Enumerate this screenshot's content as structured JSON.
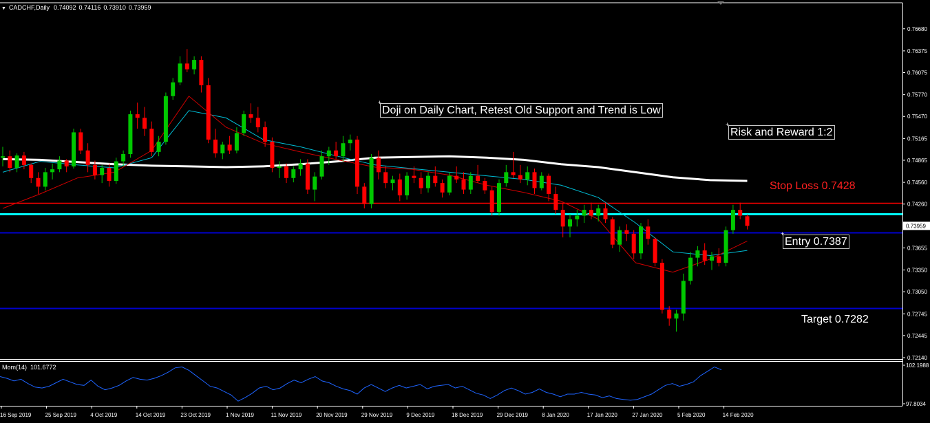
{
  "symbol": {
    "name": "CADCHF,Daily",
    "ohlc": [
      "0.74092",
      "0.74116",
      "0.73910",
      "0.73959"
    ],
    "menu_icon": "triangle-down-icon"
  },
  "indicator": {
    "name": "Mom(14)",
    "value": "101.6772"
  },
  "annotations": {
    "doji": "Doji on Daily Chart, Retest Old Support and Trend is Low",
    "risk": "Risk and Reward 1:2",
    "stop": "Stop Loss 0.7428",
    "entry": "Entry 0.7387",
    "target": "Target 0.7282"
  },
  "price_axis": {
    "labels": [
      "0.76680",
      "0.76375",
      "0.76075",
      "0.75770",
      "0.75470",
      "0.75165",
      "0.74865",
      "0.74560",
      "0.74260",
      "0.73955",
      "0.73655",
      "0.73350",
      "0.73050",
      "0.72745",
      "0.72445",
      "0.72140"
    ],
    "current": "0.73959"
  },
  "mom_axis": {
    "labels": [
      "102.1988",
      "97.8034"
    ]
  },
  "time_axis": {
    "labels": [
      "16 Sep 2019",
      "25 Sep 2019",
      "4 Oct 2019",
      "14 Oct 2019",
      "23 Oct 2019",
      "1 Nov 2019",
      "11 Nov 2019",
      "20 Nov 2019",
      "29 Nov 2019",
      "9 Dec 2019",
      "18 Dec 2019",
      "29 Dec 2019",
      "8 Jan 2020",
      "17 Jan 2020",
      "27 Jan 2020",
      "5 Feb 2020",
      "14 Feb 2020"
    ]
  },
  "colors": {
    "background": "#000000",
    "bull": "#00c800",
    "bear": "#ff0000",
    "stop_line": "#ff0000",
    "support_line": "#00ffff",
    "level_line": "#0000cc",
    "ma_fast": "#00bcd4",
    "ma_slow": "#d00000",
    "ma_long": "#ffffff",
    "momentum": "#1e64ff",
    "grid_axis": "#ffffff",
    "stop_text": "#ff2020"
  },
  "chart_data": [
    {
      "type": "candlestick",
      "title": "CADCHF,Daily",
      "ylim": [
        0.7214,
        0.7683
      ],
      "levels": [
        {
          "name": "Stop Loss",
          "value": 0.7428,
          "color": "#ff0000"
        },
        {
          "name": "Support",
          "value": 0.7412,
          "color": "#00ffff"
        },
        {
          "name": "Entry",
          "value": 0.7387,
          "color": "#0000cc"
        },
        {
          "name": "Target",
          "value": 0.7282,
          "color": "#0000cc"
        }
      ],
      "candles": [
        [
          0.749,
          0.7505,
          0.7478,
          0.7492
        ],
        [
          0.7492,
          0.75,
          0.747,
          0.7476
        ],
        [
          0.7476,
          0.7496,
          0.747,
          0.7493
        ],
        [
          0.7493,
          0.7498,
          0.7474,
          0.748
        ],
        [
          0.748,
          0.7482,
          0.7455,
          0.7462
        ],
        [
          0.7462,
          0.747,
          0.744,
          0.745
        ],
        [
          0.745,
          0.7476,
          0.7445,
          0.747
        ],
        [
          0.747,
          0.7482,
          0.746,
          0.7474
        ],
        [
          0.7474,
          0.7492,
          0.747,
          0.7486
        ],
        [
          0.7486,
          0.7488,
          0.747,
          0.7478
        ],
        [
          0.7478,
          0.753,
          0.7475,
          0.7525
        ],
        [
          0.7525,
          0.753,
          0.7495,
          0.75
        ],
        [
          0.75,
          0.751,
          0.747,
          0.748
        ],
        [
          0.748,
          0.7486,
          0.746,
          0.7466
        ],
        [
          0.7466,
          0.748,
          0.7455,
          0.7476
        ],
        [
          0.7476,
          0.7482,
          0.745,
          0.7458
        ],
        [
          0.7458,
          0.749,
          0.7454,
          0.7485
        ],
        [
          0.7485,
          0.75,
          0.7478,
          0.7495
        ],
        [
          0.7495,
          0.7555,
          0.749,
          0.755
        ],
        [
          0.755,
          0.7566,
          0.753,
          0.7545
        ],
        [
          0.7545,
          0.756,
          0.752,
          0.753
        ],
        [
          0.753,
          0.754,
          0.7492,
          0.7498
        ],
        [
          0.7498,
          0.752,
          0.7492,
          0.7512
        ],
        [
          0.7512,
          0.758,
          0.7508,
          0.7575
        ],
        [
          0.7575,
          0.76,
          0.757,
          0.7594
        ],
        [
          0.7594,
          0.763,
          0.759,
          0.762
        ],
        [
          0.762,
          0.764,
          0.7608,
          0.7612
        ],
        [
          0.7612,
          0.763,
          0.7605,
          0.7625
        ],
        [
          0.7625,
          0.763,
          0.758,
          0.759
        ],
        [
          0.759,
          0.76,
          0.751,
          0.7515
        ],
        [
          0.7515,
          0.753,
          0.749,
          0.7496
        ],
        [
          0.7496,
          0.7512,
          0.7488,
          0.7508
        ],
        [
          0.7508,
          0.752,
          0.7495,
          0.75
        ],
        [
          0.75,
          0.7532,
          0.7496,
          0.7524
        ],
        [
          0.7524,
          0.7555,
          0.752,
          0.755
        ],
        [
          0.755,
          0.7565,
          0.7538,
          0.7545
        ],
        [
          0.7545,
          0.756,
          0.7525,
          0.7532
        ],
        [
          0.7532,
          0.754,
          0.7505,
          0.7512
        ],
        [
          0.7512,
          0.7518,
          0.747,
          0.7476
        ],
        [
          0.7476,
          0.7485,
          0.7462,
          0.7478
        ],
        [
          0.7478,
          0.7482,
          0.7455,
          0.7462
        ],
        [
          0.7462,
          0.7478,
          0.7456,
          0.7474
        ],
        [
          0.7474,
          0.7488,
          0.7465,
          0.7482
        ],
        [
          0.7482,
          0.7488,
          0.744,
          0.7446
        ],
        [
          0.7446,
          0.747,
          0.743,
          0.7464
        ],
        [
          0.7464,
          0.75,
          0.746,
          0.7492
        ],
        [
          0.7492,
          0.7505,
          0.748,
          0.75
        ],
        [
          0.75,
          0.7512,
          0.7488,
          0.7492
        ],
        [
          0.7492,
          0.752,
          0.7485,
          0.751
        ],
        [
          0.751,
          0.7522,
          0.75,
          0.7515
        ],
        [
          0.7515,
          0.752,
          0.744,
          0.745
        ],
        [
          0.745,
          0.7455,
          0.742,
          0.7426
        ],
        [
          0.7426,
          0.7495,
          0.742,
          0.749
        ],
        [
          0.749,
          0.75,
          0.746,
          0.747
        ],
        [
          0.747,
          0.7478,
          0.7448,
          0.7455
        ],
        [
          0.7455,
          0.7465,
          0.7445,
          0.746
        ],
        [
          0.746,
          0.7468,
          0.743,
          0.7438
        ],
        [
          0.7438,
          0.747,
          0.7432,
          0.7465
        ],
        [
          0.7465,
          0.7478,
          0.7455,
          0.7462
        ],
        [
          0.7462,
          0.747,
          0.744,
          0.7448
        ],
        [
          0.7448,
          0.747,
          0.7442,
          0.7465
        ],
        [
          0.7465,
          0.7478,
          0.745,
          0.7455
        ],
        [
          0.7455,
          0.746,
          0.7435,
          0.7442
        ],
        [
          0.7442,
          0.747,
          0.7438,
          0.7465
        ],
        [
          0.7465,
          0.7478,
          0.7455,
          0.746
        ],
        [
          0.746,
          0.747,
          0.744,
          0.7446
        ],
        [
          0.7446,
          0.747,
          0.744,
          0.7465
        ],
        [
          0.7465,
          0.748,
          0.7455,
          0.7458
        ],
        [
          0.7458,
          0.7462,
          0.744,
          0.7445
        ],
        [
          0.7445,
          0.745,
          0.741,
          0.7415
        ],
        [
          0.7415,
          0.746,
          0.741,
          0.7455
        ],
        [
          0.7455,
          0.748,
          0.745,
          0.747
        ],
        [
          0.747,
          0.7498,
          0.7462,
          0.7466
        ],
        [
          0.7466,
          0.748,
          0.7455,
          0.746
        ],
        [
          0.746,
          0.7478,
          0.7452,
          0.747
        ],
        [
          0.747,
          0.7475,
          0.744,
          0.7448
        ],
        [
          0.7448,
          0.747,
          0.7445,
          0.7465
        ],
        [
          0.7465,
          0.7468,
          0.743,
          0.744
        ],
        [
          0.744,
          0.745,
          0.7412,
          0.7418
        ],
        [
          0.7418,
          0.7428,
          0.738,
          0.7395
        ],
        [
          0.7395,
          0.7412,
          0.738,
          0.7405
        ],
        [
          0.7405,
          0.7418,
          0.7395,
          0.741
        ],
        [
          0.741,
          0.7425,
          0.74,
          0.7418
        ],
        [
          0.7418,
          0.7428,
          0.7405,
          0.741
        ],
        [
          0.741,
          0.7425,
          0.7402,
          0.742
        ],
        [
          0.742,
          0.7428,
          0.74,
          0.7405
        ],
        [
          0.7405,
          0.7408,
          0.7365,
          0.737
        ],
        [
          0.737,
          0.7395,
          0.736,
          0.739
        ],
        [
          0.739,
          0.7398,
          0.7375,
          0.7385
        ],
        [
          0.7385,
          0.739,
          0.735,
          0.7358
        ],
        [
          0.7358,
          0.74,
          0.735,
          0.7395
        ],
        [
          0.7395,
          0.7405,
          0.737,
          0.7378
        ],
        [
          0.7378,
          0.738,
          0.734,
          0.7345
        ],
        [
          0.7345,
          0.735,
          0.7275,
          0.728
        ],
        [
          0.728,
          0.7285,
          0.7258,
          0.7268
        ],
        [
          0.7268,
          0.728,
          0.725,
          0.7275
        ],
        [
          0.7275,
          0.733,
          0.7265,
          0.732
        ],
        [
          0.732,
          0.736,
          0.7315,
          0.7352
        ],
        [
          0.7352,
          0.7368,
          0.734,
          0.7362
        ],
        [
          0.7362,
          0.7372,
          0.7342,
          0.7348
        ],
        [
          0.7348,
          0.736,
          0.7335,
          0.7354
        ],
        [
          0.7354,
          0.7365,
          0.734,
          0.7345
        ],
        [
          0.7345,
          0.7395,
          0.734,
          0.739
        ],
        [
          0.739,
          0.7425,
          0.7385,
          0.7418
        ],
        [
          0.7418,
          0.7428,
          0.7405,
          0.741
        ],
        [
          0.74092,
          0.74116,
          0.7391,
          0.73959
        ]
      ],
      "moving_averages": [
        {
          "color": "#ffffff",
          "values": [
            0.7488,
            0.7487,
            0.7484,
            0.7481,
            0.7479,
            0.7478,
            0.7477,
            0.7478,
            0.7481,
            0.7485,
            0.749,
            0.7491,
            0.7492,
            0.749,
            0.7487,
            0.7481,
            0.7477,
            0.747,
            0.7463,
            0.7459,
            0.7458
          ]
        },
        {
          "color": "#00bcd4",
          "values": [
            0.747,
            0.7485,
            0.748,
            0.7476,
            0.749,
            0.7555,
            0.7545,
            0.7515,
            0.7505,
            0.7492,
            0.748,
            0.7475,
            0.747,
            0.7465,
            0.746,
            0.7452,
            0.7435,
            0.74,
            0.736,
            0.7355,
            0.7362
          ]
        },
        {
          "color": "#d00000",
          "values": [
            0.742,
            0.744,
            0.7462,
            0.747,
            0.75,
            0.7575,
            0.7532,
            0.751,
            0.7498,
            0.7487,
            0.7477,
            0.7474,
            0.7466,
            0.7452,
            0.7442,
            0.743,
            0.7405,
            0.7345,
            0.7332,
            0.735,
            0.7375
          ]
        }
      ]
    },
    {
      "type": "line",
      "title": "Mom(14) 101.6772",
      "ylim": [
        97.8034,
        102.1988
      ],
      "series": [
        {
          "values": [
            100.9,
            100.7,
            100.4,
            100.6,
            100.1,
            99.7,
            99.6,
            99.8,
            100.2,
            100.6,
            100.3,
            100.0,
            99.9,
            100.5,
            99.8,
            99.4,
            99.6,
            99.9,
            100.4,
            100.8,
            100.6,
            100.5,
            100.7,
            101.0,
            101.4,
            101.9,
            102.0,
            101.6,
            101.0,
            100.4,
            99.8,
            99.6,
            99.2,
            98.8,
            98.1,
            98.5,
            99.0,
            99.6,
            99.8,
            99.4,
            99.6,
            100.1,
            100.5,
            100.2,
            100.6,
            100.9,
            100.4,
            100.2,
            99.8,
            99.5,
            99.3,
            98.9,
            99.6,
            100.0,
            99.6,
            99.2,
            99.6,
            99.9,
            99.6,
            99.8,
            100.0,
            99.5,
            99.8,
            99.9,
            100.0,
            99.6,
            99.8,
            99.4,
            99.0,
            98.8,
            98.4,
            98.8,
            99.3,
            99.6,
            99.3,
            98.9,
            99.1,
            99.5,
            99.1,
            98.9,
            98.6,
            98.9,
            98.9,
            99.1,
            98.9,
            98.8,
            98.5,
            98.7,
            98.4,
            98.3,
            98.2,
            98.3,
            98.6,
            98.9,
            99.4,
            99.9,
            100.1,
            99.8,
            100.0,
            100.3,
            101.0,
            101.5,
            102.0,
            101.68
          ]
        }
      ]
    }
  ]
}
